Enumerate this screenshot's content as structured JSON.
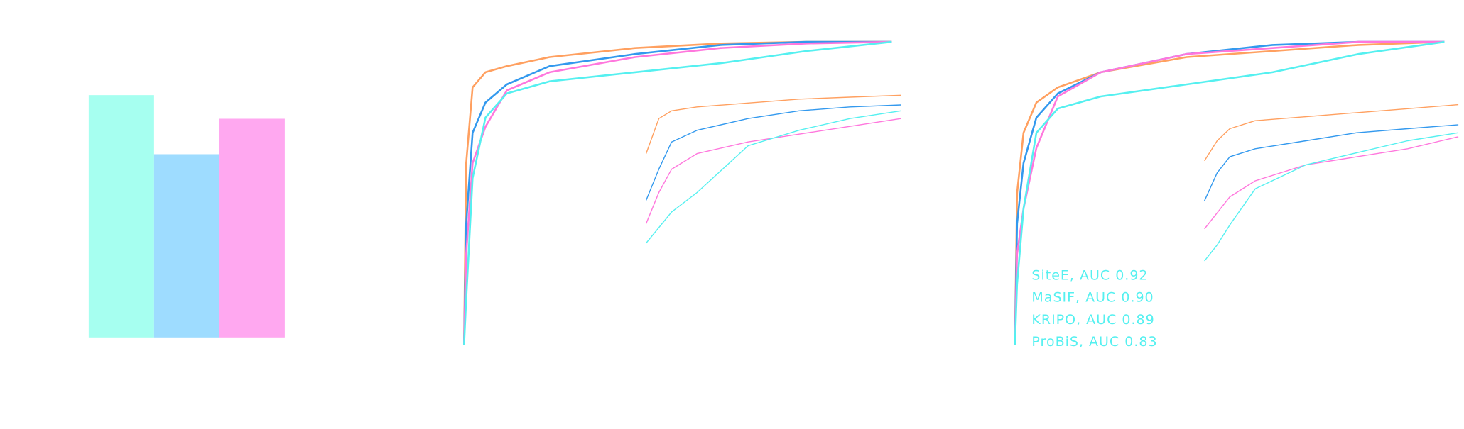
{
  "chart_data": [
    {
      "type": "bar",
      "categories": [
        null,
        null,
        null
      ],
      "values": [
        0.82,
        0.62,
        0.74
      ],
      "colors": [
        "#a6fff0",
        "#9edcff",
        "#ffa8f0"
      ],
      "ylim": [
        0,
        1
      ]
    },
    {
      "type": "line",
      "xlim": [
        0,
        1
      ],
      "ylim": [
        0,
        1
      ],
      "x": [
        0,
        0.005,
        0.02,
        0.05,
        0.1,
        0.2,
        0.4,
        0.6,
        0.8,
        1
      ],
      "series": [
        {
          "color": "#ffa060",
          "values": [
            0,
            0.6,
            0.85,
            0.9,
            0.92,
            0.95,
            0.98,
            0.995,
            1,
            1
          ]
        },
        {
          "color": "#3399ee",
          "values": [
            0,
            0.4,
            0.7,
            0.8,
            0.86,
            0.92,
            0.96,
            0.99,
            1,
            1
          ]
        },
        {
          "color": "#ff77dd",
          "values": [
            0,
            0.3,
            0.6,
            0.72,
            0.84,
            0.9,
            0.95,
            0.98,
            0.995,
            1
          ]
        },
        {
          "color": "#55f0f0",
          "values": [
            0,
            0.15,
            0.55,
            0.75,
            0.83,
            0.87,
            0.9,
            0.93,
            0.97,
            1
          ]
        }
      ]
    },
    {
      "type": "line",
      "xlim": [
        0,
        0.1
      ],
      "ylim": [
        0.6,
        1
      ],
      "x": [
        0,
        0.005,
        0.01,
        0.02,
        0.04,
        0.06,
        0.08,
        0.1
      ],
      "series": [
        {
          "color": "#ffa060",
          "values": [
            0.84,
            0.93,
            0.95,
            0.96,
            0.97,
            0.98,
            0.985,
            0.99
          ]
        },
        {
          "color": "#3399ee",
          "values": [
            0.72,
            0.8,
            0.87,
            0.9,
            0.93,
            0.95,
            0.96,
            0.965
          ]
        },
        {
          "color": "#ff77dd",
          "values": [
            0.66,
            0.74,
            0.8,
            0.84,
            0.87,
            0.89,
            0.91,
            0.93
          ]
        },
        {
          "color": "#55f0f0",
          "values": [
            0.61,
            0.65,
            0.69,
            0.74,
            0.86,
            0.9,
            0.93,
            0.95
          ]
        }
      ]
    },
    {
      "type": "line",
      "xlim": [
        0,
        1
      ],
      "ylim": [
        0,
        1
      ],
      "x": [
        0,
        0.005,
        0.02,
        0.05,
        0.1,
        0.2,
        0.4,
        0.6,
        0.8,
        1
      ],
      "legend_color": "#55f0f0",
      "series": [
        {
          "name": "SiteE, AUC 0.92",
          "color": "#ffa060",
          "values": [
            0,
            0.5,
            0.7,
            0.8,
            0.85,
            0.9,
            0.95,
            0.97,
            0.99,
            1
          ]
        },
        {
          "name": "MaSIF, AUC 0.90",
          "color": "#3399ee",
          "values": [
            0,
            0.4,
            0.6,
            0.75,
            0.83,
            0.9,
            0.96,
            0.99,
            1,
            1
          ]
        },
        {
          "name": "KRIPO, AUC 0.89",
          "color": "#ff77dd",
          "values": [
            0,
            0.3,
            0.45,
            0.65,
            0.82,
            0.9,
            0.96,
            0.98,
            1,
            1
          ]
        },
        {
          "name": "ProBiS, AUC 0.83",
          "color": "#55f0f0",
          "values": [
            0,
            0.2,
            0.45,
            0.7,
            0.78,
            0.82,
            0.86,
            0.9,
            0.96,
            1
          ]
        }
      ]
    },
    {
      "type": "line",
      "xlim": [
        0,
        0.1
      ],
      "ylim": [
        0.6,
        1
      ],
      "x": [
        0,
        0.005,
        0.01,
        0.02,
        0.04,
        0.06,
        0.08,
        0.1
      ],
      "series": [
        {
          "color": "#ffa060",
          "values": [
            0.85,
            0.9,
            0.93,
            0.95,
            0.96,
            0.97,
            0.98,
            0.99
          ]
        },
        {
          "color": "#3399ee",
          "values": [
            0.75,
            0.82,
            0.86,
            0.88,
            0.9,
            0.92,
            0.93,
            0.94
          ]
        },
        {
          "color": "#ff77dd",
          "values": [
            0.68,
            0.72,
            0.76,
            0.8,
            0.84,
            0.86,
            0.88,
            0.91
          ]
        },
        {
          "color": "#55f0f0",
          "values": [
            0.6,
            0.64,
            0.69,
            0.78,
            0.84,
            0.87,
            0.9,
            0.92
          ]
        }
      ]
    }
  ]
}
